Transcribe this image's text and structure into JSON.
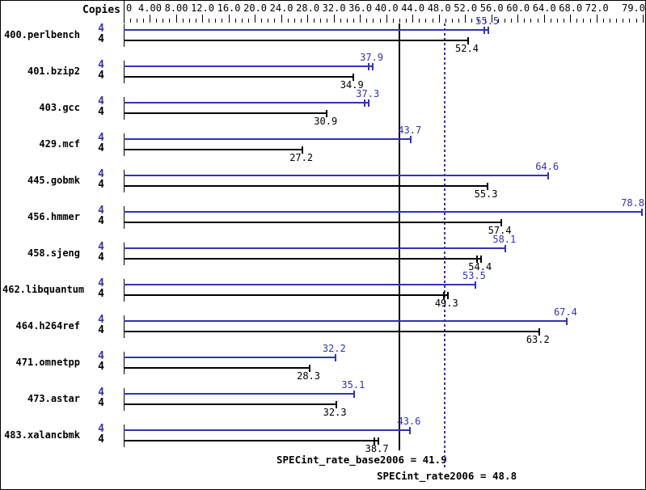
{
  "chart_data": {
    "type": "bar",
    "orientation": "horizontal",
    "title": "",
    "copies_header": "Copies",
    "colors": {
      "peak": "#3333b2",
      "base": "#000000"
    },
    "axis": {
      "min": 0,
      "max": 79.35,
      "minor_tick_interval": 1,
      "major_tick_interval": 4,
      "position": "top",
      "ticks": [
        {
          "v": 0,
          "t": "0"
        },
        {
          "v": 4,
          "t": "4.00"
        },
        {
          "v": 8,
          "t": "8.00"
        },
        {
          "v": 12,
          "t": "12.0"
        },
        {
          "v": 16,
          "t": "16.0"
        },
        {
          "v": 20,
          "t": "20.0"
        },
        {
          "v": 24,
          "t": "24.0"
        },
        {
          "v": 28,
          "t": "28.0"
        },
        {
          "v": 32,
          "t": "32.0"
        },
        {
          "v": 36,
          "t": "36.0"
        },
        {
          "v": 40,
          "t": "40.0"
        },
        {
          "v": 44,
          "t": "44.0"
        },
        {
          "v": 48,
          "t": "48.0"
        },
        {
          "v": 52,
          "t": "52.0"
        },
        {
          "v": 56,
          "t": "56.0"
        },
        {
          "v": 60,
          "t": "60.0"
        },
        {
          "v": 64,
          "t": "64.0"
        },
        {
          "v": 68,
          "t": "68.0"
        },
        {
          "v": 72,
          "t": "72.0"
        },
        {
          "v": 79,
          "t": "79.0"
        }
      ]
    },
    "series": [
      {
        "name": "peak",
        "color": "#3333b2"
      },
      {
        "name": "base",
        "color": "#000000"
      }
    ],
    "benchmarks": [
      {
        "name": "400.perlbench",
        "copies": 4,
        "peak": 55.5,
        "base": 52.4,
        "peak_cap2": true,
        "base_cap2": false
      },
      {
        "name": "401.bzip2",
        "copies": 4,
        "peak": 37.9,
        "base": 34.9,
        "peak_cap2": true,
        "base_cap2": false
      },
      {
        "name": "403.gcc",
        "copies": 4,
        "peak": 37.3,
        "base": 30.9,
        "peak_cap2": true,
        "base_cap2": false
      },
      {
        "name": "429.mcf",
        "copies": 4,
        "peak": 43.7,
        "base": 27.2,
        "peak_cap2": false,
        "base_cap2": false
      },
      {
        "name": "445.gobmk",
        "copies": 4,
        "peak": 64.6,
        "base": 55.3,
        "peak_cap2": false,
        "base_cap2": false
      },
      {
        "name": "456.hmmer",
        "copies": 4,
        "peak": 78.8,
        "base": 57.4,
        "peak_cap2": false,
        "base_cap2": false
      },
      {
        "name": "458.sjeng",
        "copies": 4,
        "peak": 58.1,
        "base": 54.4,
        "peak_cap2": false,
        "base_cap2": true
      },
      {
        "name": "462.libquantum",
        "copies": 4,
        "peak": 53.5,
        "base": 49.3,
        "peak_cap2": false,
        "base_cap2": true
      },
      {
        "name": "464.h264ref",
        "copies": 4,
        "peak": 67.4,
        "base": 63.2,
        "peak_cap2": false,
        "base_cap2": false
      },
      {
        "name": "471.omnetpp",
        "copies": 4,
        "peak": 32.2,
        "base": 28.3,
        "peak_cap2": false,
        "base_cap2": false
      },
      {
        "name": "473.astar",
        "copies": 4,
        "peak": 35.1,
        "base": 32.3,
        "peak_cap2": false,
        "base_cap2": false
      },
      {
        "name": "483.xalancbmk",
        "copies": 4,
        "peak": 43.6,
        "base": 38.7,
        "peak_cap2": false,
        "base_cap2": true
      }
    ],
    "reference_lines": [
      {
        "name": "base_mean",
        "label": "SPECint_rate_base2006 = 41.9",
        "value": 41.9,
        "style": "solid",
        "color": "#000000"
      },
      {
        "name": "peak_mean",
        "label": "SPECint_rate2006 = 48.8",
        "value": 48.8,
        "style": "dotted",
        "color": "#3333b2"
      }
    ]
  }
}
